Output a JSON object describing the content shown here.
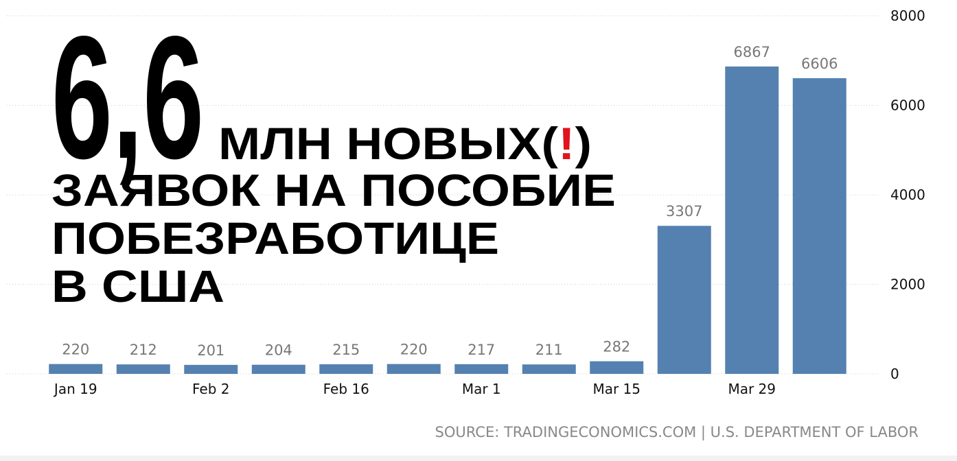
{
  "chart_data": {
    "type": "bar",
    "categories": [
      "Jan 19",
      null,
      "Feb 2",
      null,
      "Feb 16",
      null,
      "Mar 1",
      null,
      "Mar 15",
      null,
      "Mar 29",
      null
    ],
    "values": [
      220,
      212,
      201,
      204,
      215,
      220,
      217,
      211,
      282,
      3307,
      6867,
      6606
    ],
    "color": "#5581b0",
    "ylim": [
      0,
      8000
    ],
    "yticks": [
      0,
      2000,
      4000,
      6000,
      8000
    ],
    "grid": true,
    "source": "SOURCE: TRADINGECONOMICS.COM | U.S. DEPARTMENT OF LABOR"
  },
  "headline": {
    "number": "6,6",
    "line1": "МЛН НОВЫХ(",
    "exclaim": "!",
    "close": ")",
    "line2": "ЗАЯВОК НА ПОСОБИЕ",
    "line3": "ПОБЕЗРАБОТИЦЕ",
    "line4": "В США"
  }
}
